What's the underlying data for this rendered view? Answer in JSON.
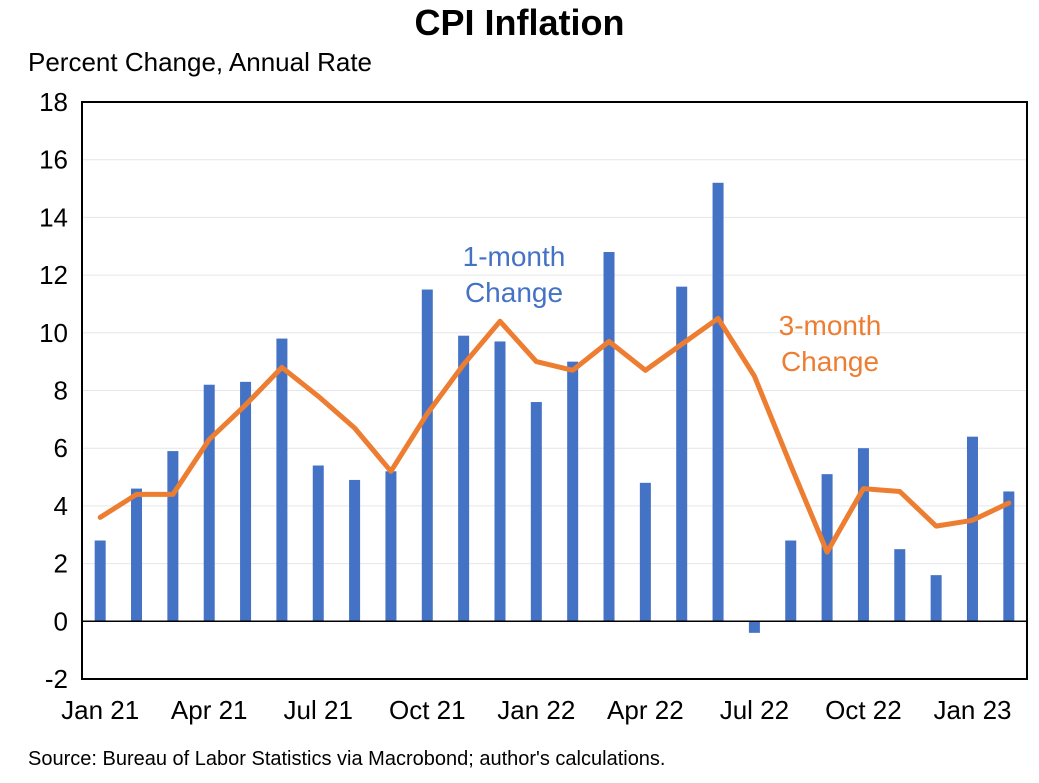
{
  "chart_data": {
    "type": "bar",
    "title": "CPI Inflation",
    "ylabel": "Percent Change, Annual Rate",
    "xlabel": "",
    "ylim": [
      -2,
      18
    ],
    "yticks": [
      -2,
      0,
      2,
      4,
      6,
      8,
      10,
      12,
      14,
      16,
      18
    ],
    "grid": true,
    "x": [
      "Jan 21",
      "Feb 21",
      "Mar 21",
      "Apr 21",
      "May 21",
      "Jun 21",
      "Jul 21",
      "Aug 21",
      "Sep 21",
      "Oct 21",
      "Nov 21",
      "Dec 21",
      "Jan 22",
      "Feb 22",
      "Mar 22",
      "Apr 22",
      "May 22",
      "Jun 22",
      "Jul 22",
      "Aug 22",
      "Sep 22",
      "Oct 22",
      "Nov 22",
      "Dec 22",
      "Jan 23",
      "Feb 23"
    ],
    "x_tick_labels": [
      "Jan 21",
      "Apr 21",
      "Jul 21",
      "Oct 21",
      "Jan 22",
      "Apr 22",
      "Jul 22",
      "Oct 22",
      "Jan 23"
    ],
    "series": [
      {
        "kind": "bar",
        "color": "#4472C4",
        "values": [
          2.8,
          4.6,
          5.9,
          8.2,
          8.3,
          9.8,
          5.4,
          4.9,
          5.2,
          11.5,
          9.9,
          9.7,
          7.6,
          9.0,
          12.8,
          4.8,
          11.6,
          15.2,
          -0.4,
          2.8,
          5.1,
          6.0,
          2.5,
          1.6,
          6.4,
          4.5
        ]
      },
      {
        "kind": "line",
        "color": "#ED7D31",
        "values": [
          3.6,
          4.4,
          4.4,
          6.3,
          7.5,
          8.8,
          7.8,
          6.7,
          5.2,
          7.2,
          8.9,
          10.4,
          9.0,
          8.7,
          9.7,
          8.7,
          9.6,
          10.5,
          8.5,
          5.4,
          2.4,
          4.6,
          4.5,
          3.3,
          3.5,
          4.1
        ]
      }
    ],
    "annotations": [
      {
        "lines": [
          "1-month",
          "Change"
        ],
        "color": "#4472C4"
      },
      {
        "lines": [
          "3-month",
          "Change"
        ],
        "color": "#ED7D31"
      }
    ],
    "source": "Source: Bureau of Labor Statistics via Macrobond; author's calculations."
  }
}
